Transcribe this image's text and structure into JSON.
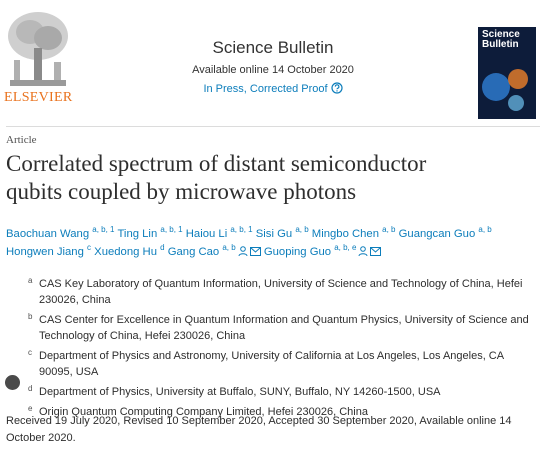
{
  "header": {
    "publisher": "ELSEVIER",
    "journal": "Science Bulletin",
    "availability": "Available online 14 October 2020",
    "status": "In Press, Corrected Proof",
    "cover_title": "Science Bulletin"
  },
  "article": {
    "type": "Article",
    "title": "Correlated spectrum of distant semiconductor qubits coupled by microwave photons",
    "authors": [
      {
        "name": "Baochuan Wang",
        "sup": "a, b, 1"
      },
      {
        "name": "Ting Lin",
        "sup": "a, b, 1"
      },
      {
        "name": "Haiou Li",
        "sup": "a, b, 1"
      },
      {
        "name": "Sisi Gu",
        "sup": "a, b"
      },
      {
        "name": "Mingbo Chen",
        "sup": "a, b"
      },
      {
        "name": "Guangcan Guo",
        "sup": "a, b"
      },
      {
        "name": "Hongwen Jiang",
        "sup": "c"
      },
      {
        "name": "Xuedong Hu",
        "sup": "d"
      },
      {
        "name": "Gang Cao",
        "sup": "a, b",
        "corresponding": true
      },
      {
        "name": "Guoping Guo",
        "sup": "a, b, e",
        "corresponding": true
      }
    ],
    "affiliations": [
      {
        "label": "a",
        "text": "CAS Key Laboratory of Quantum Information, University of Science and Technology of China, Hefei 230026, China"
      },
      {
        "label": "b",
        "text": "CAS Center for Excellence in Quantum Information and Quantum Physics, University of Science and Technology of China, Hefei 230026, China"
      },
      {
        "label": "c",
        "text": "Department of Physics and Astronomy, University of California at Los Angeles, Los Angeles, CA 90095, USA"
      },
      {
        "label": "d",
        "text": "Department of Physics, University at Buffalo, SUNY, Buffalo, NY 14260-1500, USA"
      },
      {
        "label": "e",
        "text": "Origin Quantum Computing Company Limited, Hefei 230026, China"
      }
    ],
    "history": "Received 19 July 2020, Revised 10 September 2020, Accepted 30 September 2020, Available online 14 October 2020."
  }
}
